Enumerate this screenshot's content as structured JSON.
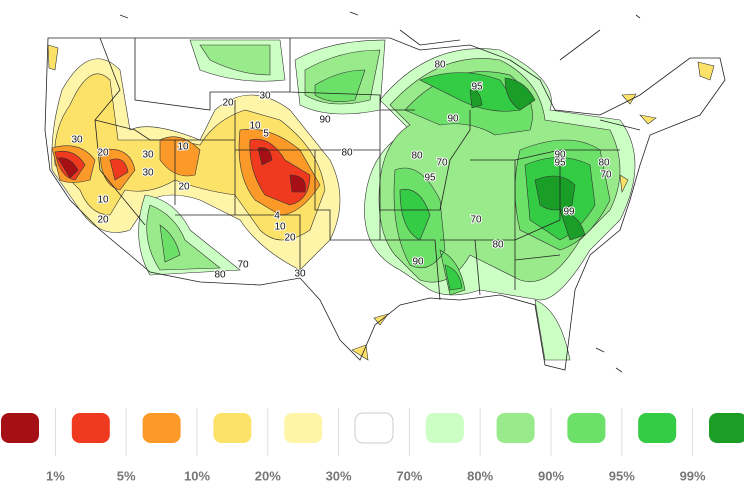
{
  "legend": {
    "colors": [
      "#a50f15",
      "#f03a1f",
      "#fb9a29",
      "#fde26a",
      "#fff5a8",
      "#ffffff",
      "#ccffc4",
      "#99ea8a",
      "#6de06a",
      "#33cc44",
      "#1a9e28"
    ],
    "labels": [
      "1%",
      "5%",
      "10%",
      "20%",
      "30%",
      "70%",
      "80%",
      "90%",
      "95%",
      "99%"
    ]
  },
  "map_labels": [
    "30",
    "20",
    "30",
    "10",
    "20",
    "30",
    "10",
    "20",
    "30",
    "20",
    "10",
    "5",
    "4",
    "10",
    "20",
    "30",
    "70",
    "80",
    "90",
    "80",
    "80",
    "95",
    "90",
    "80",
    "70",
    "95",
    "70",
    "80",
    "90",
    "90",
    "95",
    "80",
    "70",
    "99"
  ]
}
